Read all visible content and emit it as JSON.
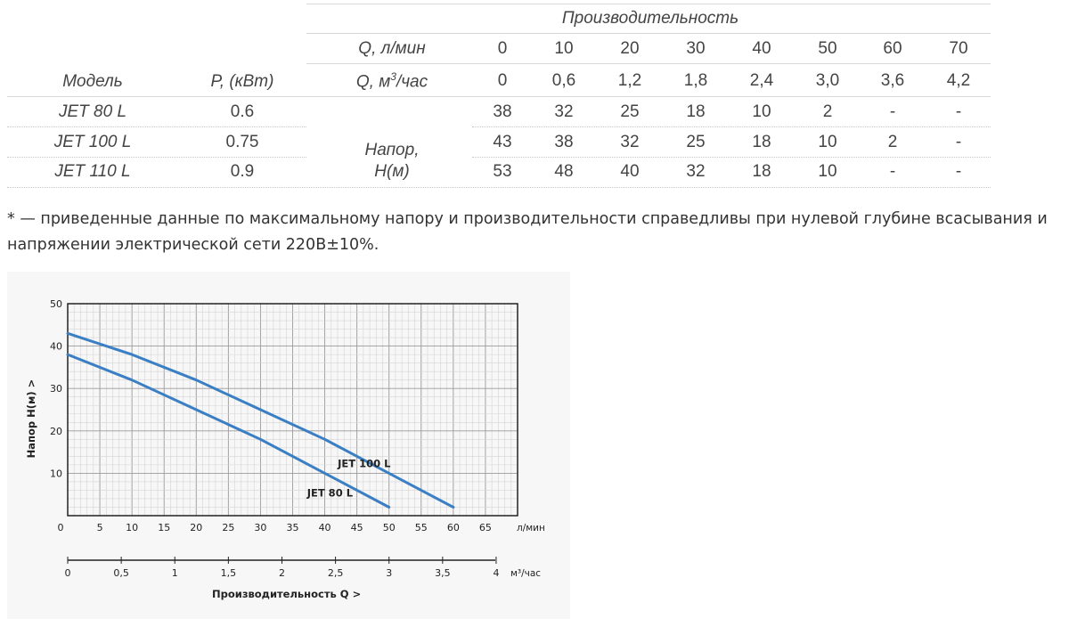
{
  "table": {
    "group_header": "Производительность",
    "model_header": "Модель",
    "power_header": "P, (кВт)",
    "q_lmin_label": "Q, л/мин",
    "q_m3_label_pre": "Q, м",
    "q_m3_sup": "3",
    "q_m3_label_post": "/час",
    "q_lmin": [
      "0",
      "10",
      "20",
      "30",
      "40",
      "50",
      "60",
      "70"
    ],
    "q_m3": [
      "0",
      "0,6",
      "1,2",
      "1,8",
      "2,4",
      "3,0",
      "3,6",
      "4,2"
    ],
    "head_label_1": "Напор,",
    "head_label_2": "Н(м)",
    "rows": [
      {
        "model": "JET 80 L",
        "power": "0.6",
        "values": [
          "38",
          "32",
          "25",
          "18",
          "10",
          "2",
          "-",
          "-"
        ]
      },
      {
        "model": "JET 100 L",
        "power": "0.75",
        "values": [
          "43",
          "38",
          "32",
          "25",
          "18",
          "10",
          "2",
          "-"
        ]
      },
      {
        "model": "JET 110 L",
        "power": "0.9",
        "values": [
          "53",
          "48",
          "40",
          "32",
          "18",
          "10",
          "-",
          "-"
        ]
      }
    ]
  },
  "note": {
    "line1": "* — приведенные данные по максимальному напору и производительности справедливы при нулевой глубине всасывания и",
    "line2": "напряжении электрической сети 220В±10%."
  },
  "chart_data": {
    "type": "line",
    "ylabel": "Напор   Н(м)  >",
    "xlabel": "Производительность Q  >",
    "x_unit": "л/мин",
    "x2_unit": "м³/час",
    "xlim": [
      0,
      70
    ],
    "ylim": [
      0,
      50
    ],
    "x_ticks": [
      "0",
      "5",
      "10",
      "15",
      "20",
      "25",
      "30",
      "35",
      "40",
      "45",
      "50",
      "55",
      "60",
      "65"
    ],
    "x2_ticks": [
      "0",
      "0,5",
      "1",
      "1,5",
      "2",
      "2,5",
      "3",
      "3,5",
      "4"
    ],
    "y_ticks": [
      "10",
      "20",
      "30",
      "40",
      "50"
    ],
    "grid": true,
    "series": [
      {
        "name": "JET 80 L",
        "color": "#3a7fc4",
        "x": [
          0,
          10,
          20,
          30,
          40,
          50
        ],
        "y": [
          38,
          32,
          25,
          18,
          10,
          2
        ]
      },
      {
        "name": "JET 100 L",
        "color": "#3a7fc4",
        "x": [
          0,
          10,
          20,
          30,
          40,
          50,
          60
        ],
        "y": [
          43,
          38,
          32,
          25,
          18,
          10,
          2
        ]
      }
    ]
  }
}
